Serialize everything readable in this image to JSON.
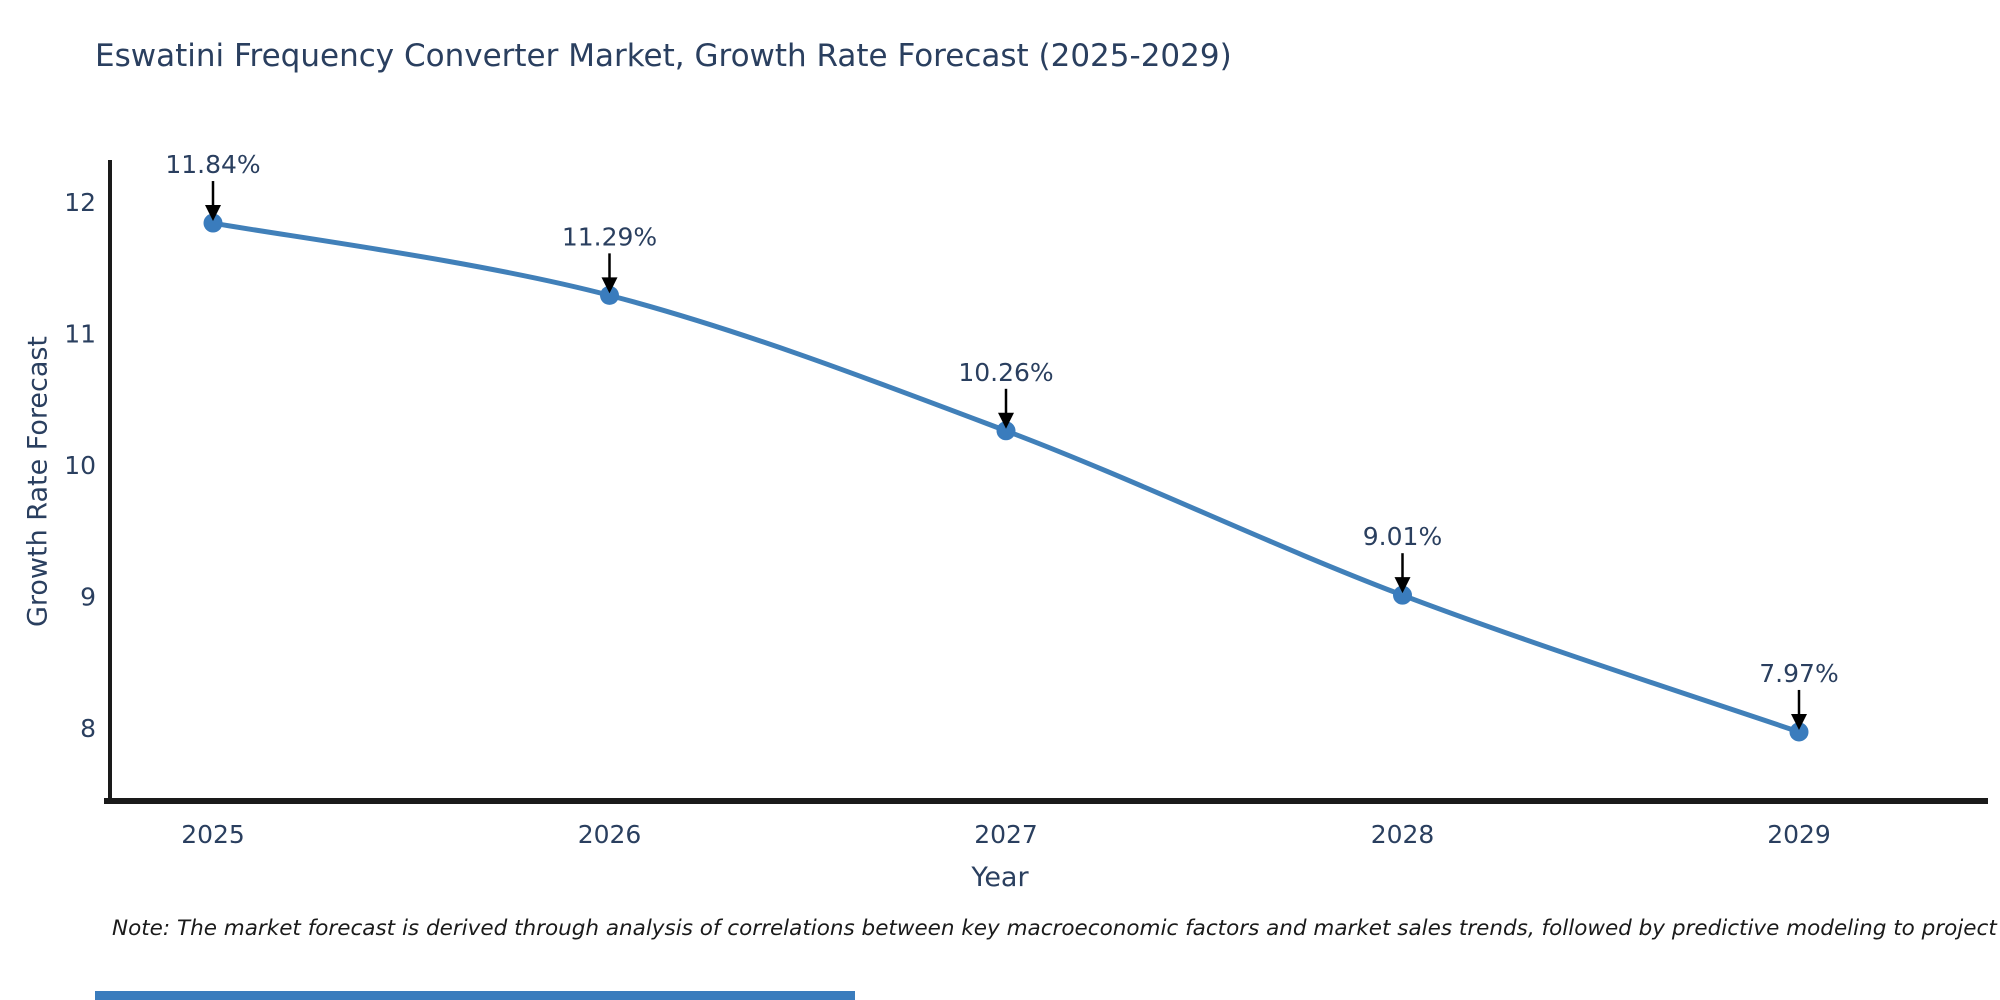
{
  "title": "Eswatini Frequency Converter Market, Growth Rate Forecast (2025-2029)",
  "note": "Note: The market forecast is derived through analysis of correlations between key macroeconomic factors and market sales trends, followed by predictive modeling to project future sales",
  "chart_data": {
    "type": "line",
    "x": [
      2025,
      2026,
      2027,
      2028,
      2029
    ],
    "values": [
      11.84,
      11.29,
      10.26,
      9.01,
      7.97
    ],
    "point_labels": [
      "11.84%",
      "11.29%",
      "10.26%",
      "9.01%",
      "7.97%"
    ],
    "title": "Eswatini Frequency Converter Market, Growth Rate Forecast (2025-2029)",
    "xlabel": "Year",
    "ylabel": "Growth Rate Forecast",
    "yticks": [
      12,
      11,
      10,
      9,
      8
    ],
    "ylim": [
      7.44,
      12.32
    ],
    "grid": false,
    "legend": "none",
    "line_color": "#4180b9",
    "marker_color": "#3a7cbd",
    "axis_line_color": "#1a1a1a",
    "tick_label_color": "#2a3f5f",
    "annotation_text_color": "#2a3f5f",
    "annotation_arrow_color": "#000000",
    "footer_bar_color": "#3a7cbd",
    "background_color": "#ffffff"
  }
}
